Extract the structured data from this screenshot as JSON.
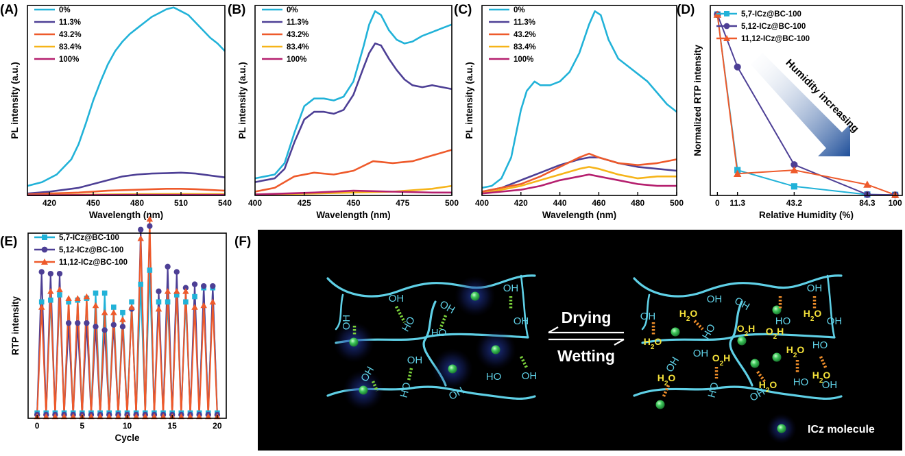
{
  "panels": {
    "a": "(A)",
    "b": "(B)",
    "c": "(C)",
    "d": "(D)",
    "e": "(E)",
    "f": "(F)"
  },
  "colors": {
    "c0": "#21b2d8",
    "c11": "#4d3f95",
    "c43": "#ee5a2b",
    "c83": "#f6b419",
    "c100": "#b51f6e",
    "s57": "#21b2d8",
    "s512": "#4d3f95",
    "s1112": "#ee5a2b",
    "cellulose": "#5fd0e6",
    "bond_green": "#7bd23b",
    "bond_orange": "#ee8d2a",
    "water_label": "#f5e23a",
    "molecule": "#3ec65a"
  },
  "chart_data": [
    {
      "id": "A",
      "type": "line",
      "xlabel": "Wavelength (nm)",
      "ylabel": "PL intensity (a.u.)",
      "xlim": [
        405,
        540
      ],
      "ylim": [
        0,
        1
      ],
      "xticks": [
        420,
        450,
        480,
        510,
        540
      ],
      "series": [
        {
          "name": "0%",
          "color": "c0",
          "x": [
            405,
            415,
            425,
            435,
            440,
            445,
            450,
            455,
            460,
            465,
            470,
            475,
            480,
            485,
            490,
            495,
            500,
            505,
            510,
            515,
            520,
            525,
            530,
            535,
            540
          ],
          "y": [
            0.05,
            0.07,
            0.11,
            0.19,
            0.27,
            0.38,
            0.5,
            0.6,
            0.69,
            0.76,
            0.81,
            0.85,
            0.88,
            0.91,
            0.94,
            0.96,
            0.98,
            0.99,
            0.97,
            0.95,
            0.91,
            0.87,
            0.83,
            0.8,
            0.76
          ]
        },
        {
          "name": "11.3%",
          "color": "c11",
          "x": [
            405,
            420,
            440,
            460,
            470,
            480,
            490,
            500,
            510,
            520,
            530,
            540
          ],
          "y": [
            0.01,
            0.02,
            0.04,
            0.08,
            0.1,
            0.11,
            0.115,
            0.117,
            0.12,
            0.115,
            0.105,
            0.095
          ]
        },
        {
          "name": "43.2%",
          "color": "c43",
          "x": [
            405,
            420,
            440,
            460,
            480,
            500,
            510,
            520,
            540
          ],
          "y": [
            0.005,
            0.01,
            0.015,
            0.025,
            0.03,
            0.035,
            0.035,
            0.033,
            0.025
          ]
        },
        {
          "name": "83.4%",
          "color": "c83",
          "x": [
            405,
            440,
            480,
            510,
            540
          ],
          "y": [
            0.002,
            0.004,
            0.007,
            0.008,
            0.007
          ]
        },
        {
          "name": "100%",
          "color": "c100",
          "x": [
            405,
            440,
            480,
            510,
            540
          ],
          "y": [
            0.001,
            0.002,
            0.003,
            0.003,
            0.003
          ]
        }
      ]
    },
    {
      "id": "B",
      "type": "line",
      "xlabel": "Wavelength (nm)",
      "ylabel": "PL intensity (a.u.)",
      "xlim": [
        400,
        500
      ],
      "ylim": [
        0,
        1
      ],
      "xticks": [
        400,
        425,
        450,
        475,
        500
      ],
      "series": [
        {
          "name": "0%",
          "color": "c0",
          "x": [
            400,
            405,
            410,
            415,
            420,
            425,
            430,
            435,
            440,
            445,
            450,
            455,
            458,
            461,
            464,
            468,
            472,
            476,
            480,
            485,
            490,
            495,
            500
          ],
          "y": [
            0.09,
            0.1,
            0.11,
            0.17,
            0.33,
            0.47,
            0.51,
            0.51,
            0.5,
            0.52,
            0.6,
            0.78,
            0.9,
            0.97,
            0.95,
            0.87,
            0.82,
            0.8,
            0.81,
            0.84,
            0.86,
            0.88,
            0.9
          ]
        },
        {
          "name": "11.3%",
          "color": "c11",
          "x": [
            400,
            405,
            410,
            415,
            420,
            425,
            430,
            435,
            440,
            445,
            450,
            455,
            458,
            461,
            464,
            468,
            472,
            476,
            480,
            485,
            490,
            500
          ],
          "y": [
            0.07,
            0.08,
            0.09,
            0.14,
            0.28,
            0.4,
            0.44,
            0.44,
            0.43,
            0.45,
            0.53,
            0.67,
            0.75,
            0.8,
            0.79,
            0.72,
            0.66,
            0.61,
            0.58,
            0.57,
            0.58,
            0.56
          ]
        },
        {
          "name": "43.2%",
          "color": "c43",
          "x": [
            400,
            410,
            420,
            430,
            440,
            450,
            460,
            470,
            480,
            490,
            500
          ],
          "y": [
            0.02,
            0.04,
            0.1,
            0.12,
            0.11,
            0.13,
            0.18,
            0.17,
            0.18,
            0.21,
            0.24
          ]
        },
        {
          "name": "83.4%",
          "color": "c83",
          "x": [
            400,
            430,
            450,
            470,
            490,
            500
          ],
          "y": [
            0.005,
            0.01,
            0.015,
            0.02,
            0.035,
            0.05
          ]
        },
        {
          "name": "100%",
          "color": "c100",
          "x": [
            400,
            430,
            450,
            470,
            490,
            500
          ],
          "y": [
            0.005,
            0.015,
            0.025,
            0.02,
            0.015,
            0.015
          ]
        }
      ]
    },
    {
      "id": "C",
      "type": "line",
      "xlabel": "Wavelength (nm)",
      "ylabel": "PL intensity (a.u.)",
      "xlim": [
        400,
        500
      ],
      "ylim": [
        0,
        1
      ],
      "xticks": [
        400,
        420,
        440,
        460,
        480,
        500
      ],
      "series": [
        {
          "name": "0%",
          "color": "c0",
          "x": [
            400,
            405,
            410,
            415,
            420,
            423,
            427,
            430,
            435,
            440,
            445,
            450,
            455,
            458,
            461,
            465,
            470,
            475,
            480,
            485,
            490,
            495,
            500
          ],
          "y": [
            0.04,
            0.05,
            0.09,
            0.2,
            0.45,
            0.55,
            0.6,
            0.58,
            0.58,
            0.6,
            0.65,
            0.75,
            0.9,
            0.97,
            0.95,
            0.82,
            0.72,
            0.68,
            0.64,
            0.6,
            0.54,
            0.48,
            0.44
          ]
        },
        {
          "name": "11.3%",
          "color": "c11",
          "x": [
            400,
            410,
            420,
            430,
            440,
            450,
            455,
            460,
            470,
            480,
            490,
            500
          ],
          "y": [
            0.02,
            0.04,
            0.08,
            0.12,
            0.16,
            0.19,
            0.2,
            0.2,
            0.17,
            0.15,
            0.14,
            0.13
          ]
        },
        {
          "name": "43.2%",
          "color": "c43",
          "x": [
            400,
            410,
            420,
            430,
            440,
            450,
            455,
            460,
            470,
            480,
            490,
            500
          ],
          "y": [
            0.02,
            0.04,
            0.06,
            0.1,
            0.15,
            0.2,
            0.22,
            0.2,
            0.17,
            0.16,
            0.17,
            0.19
          ]
        },
        {
          "name": "83.4%",
          "color": "c83",
          "x": [
            400,
            410,
            420,
            430,
            440,
            450,
            455,
            460,
            470,
            480,
            490,
            500
          ],
          "y": [
            0.01,
            0.03,
            0.05,
            0.08,
            0.11,
            0.14,
            0.15,
            0.14,
            0.11,
            0.09,
            0.1,
            0.1
          ]
        },
        {
          "name": "100%",
          "color": "c100",
          "x": [
            400,
            410,
            420,
            430,
            440,
            450,
            455,
            460,
            470,
            480,
            490,
            500
          ],
          "y": [
            0.01,
            0.02,
            0.03,
            0.05,
            0.08,
            0.1,
            0.11,
            0.1,
            0.08,
            0.06,
            0.05,
            0.05
          ]
        }
      ]
    },
    {
      "id": "D",
      "type": "line",
      "xlabel": "Relative Humidity (%)",
      "ylabel": "Normalized RTP intensity",
      "xlim": [
        -4,
        104
      ],
      "ylim": [
        0,
        1.05
      ],
      "xticks": [
        0,
        11.3,
        43.2,
        84.3,
        100
      ],
      "xticklabels": [
        "0",
        "11.3",
        "43.2",
        "84.3",
        "100"
      ],
      "annotation": "Humidity increasing",
      "series": [
        {
          "name": "5,7-ICz@BC-100",
          "color": "s57",
          "marker": "square",
          "x": [
            0,
            11.3,
            43.2,
            84.3,
            100
          ],
          "y": [
            1.0,
            0.14,
            0.05,
            0.005,
            0.003
          ]
        },
        {
          "name": "5,12-ICz@BC-100",
          "color": "s512",
          "marker": "circle",
          "x": [
            0,
            11.3,
            43.2,
            84.3,
            100
          ],
          "y": [
            1.0,
            0.71,
            0.17,
            0.005,
            0.003
          ]
        },
        {
          "name": "11,12-ICz@BC-100",
          "color": "s1112",
          "marker": "triangle",
          "x": [
            0,
            11.3,
            43.2,
            84.3,
            100
          ],
          "y": [
            1.0,
            0.12,
            0.14,
            0.06,
            0.003
          ]
        }
      ]
    },
    {
      "id": "E",
      "type": "line",
      "xlabel": "Cycle",
      "ylabel": "RTP intensity",
      "xlim": [
        -1,
        21
      ],
      "ylim": [
        0,
        1.05
      ],
      "xticks": [
        0,
        5,
        10,
        15,
        20
      ],
      "series": [
        {
          "name": "5,7-ICz@BC-100",
          "color": "s57",
          "marker": "square",
          "x": [
            0,
            0.5,
            1,
            1.5,
            2,
            2.5,
            3,
            3.5,
            4,
            4.5,
            5,
            5.5,
            6,
            6.5,
            7,
            7.5,
            8,
            8.5,
            9,
            9.5,
            10,
            10.5,
            11,
            11.5,
            12,
            12.5,
            13,
            13.5,
            14,
            14.5,
            15,
            15.5,
            16,
            16.5,
            17,
            17.5,
            18,
            18.5,
            19,
            19.5,
            20
          ],
          "y": [
            0.03,
            0.66,
            0.03,
            0.67,
            0.03,
            0.7,
            0.03,
            0.66,
            0.03,
            0.67,
            0.03,
            0.68,
            0.03,
            0.71,
            0.03,
            0.71,
            0.03,
            0.63,
            0.03,
            0.6,
            0.03,
            0.66,
            0.03,
            0.76,
            0.03,
            0.84,
            0.03,
            0.66,
            0.03,
            0.66,
            0.03,
            0.7,
            0.03,
            0.66,
            0.03,
            0.69,
            0.03,
            0.74,
            0.03,
            0.74,
            0.03
          ]
        },
        {
          "name": "5,12-ICz@BC-100",
          "color": "s512",
          "marker": "circle",
          "x": [
            0,
            0.5,
            1,
            1.5,
            2,
            2.5,
            3,
            3.5,
            4,
            4.5,
            5,
            5.5,
            6,
            6.5,
            7,
            7.5,
            8,
            8.5,
            9,
            9.5,
            10,
            10.5,
            11,
            11.5,
            12,
            12.5,
            13,
            13.5,
            14,
            14.5,
            15,
            15.5,
            16,
            16.5,
            17,
            17.5,
            18,
            18.5,
            19,
            19.5,
            20
          ],
          "y": [
            0.02,
            0.83,
            0.02,
            0.82,
            0.02,
            0.82,
            0.02,
            0.54,
            0.02,
            0.54,
            0.02,
            0.54,
            0.02,
            0.52,
            0.02,
            0.5,
            0.02,
            0.53,
            0.02,
            0.52,
            0.02,
            0.62,
            0.02,
            1.07,
            0.02,
            1.09,
            0.02,
            0.72,
            0.02,
            0.86,
            0.02,
            0.83,
            0.02,
            0.74,
            0.02,
            0.76,
            0.02,
            0.75,
            0.02,
            0.75,
            0.02
          ]
        },
        {
          "name": "11,12-ICz@BC-100",
          "color": "s1112",
          "marker": "triangle",
          "x": [
            0,
            0.5,
            1,
            1.5,
            2,
            2.5,
            3,
            3.5,
            4,
            4.5,
            5,
            5.5,
            6,
            6.5,
            7,
            7.5,
            8,
            8.5,
            9,
            9.5,
            10,
            10.5,
            11,
            11.5,
            12,
            12.5,
            13,
            13.5,
            14,
            14.5,
            15,
            15.5,
            16,
            16.5,
            17,
            17.5,
            18,
            18.5,
            19,
            19.5,
            20
          ],
          "y": [
            0.01,
            0.63,
            0.01,
            0.72,
            0.01,
            0.73,
            0.01,
            0.68,
            0.01,
            0.68,
            0.01,
            0.69,
            0.01,
            0.64,
            0.01,
            0.6,
            0.01,
            0.6,
            0.01,
            0.56,
            0.01,
            0.63,
            0.01,
            1.02,
            0.01,
            1.13,
            0.01,
            0.62,
            0.01,
            0.72,
            0.01,
            0.72,
            0.01,
            0.72,
            0.01,
            0.63,
            0.01,
            0.64,
            0.01,
            0.66,
            0.01
          ]
        }
      ]
    }
  ],
  "schematic": {
    "arrow_top": "Drying",
    "arrow_bottom": "Wetting",
    "legend": "ICz molecule",
    "oh": "OH",
    "ho": "HO",
    "h2o": "H",
    "o2h": "O",
    "sub2": "2"
  }
}
